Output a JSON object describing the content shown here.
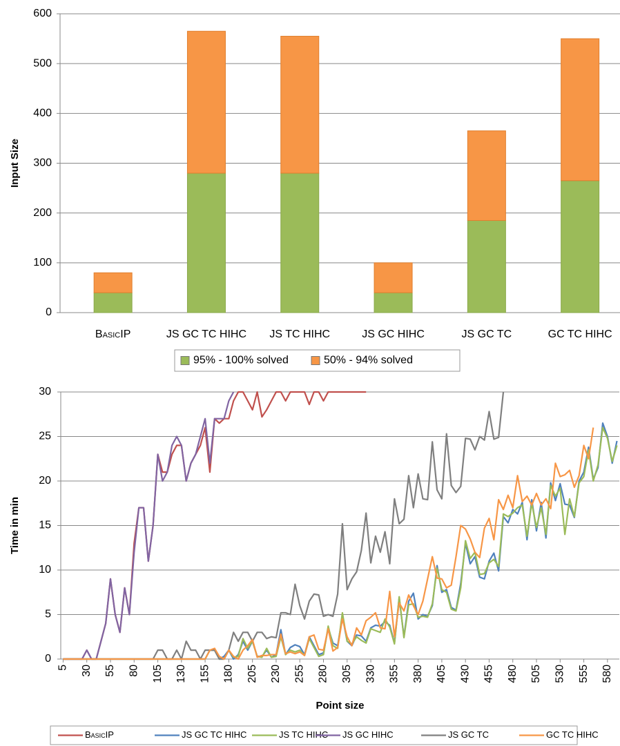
{
  "chart_data": [
    {
      "type": "bar",
      "stacked": true,
      "ylabel": "Input Size",
      "categories": [
        "BasicIP",
        "JS GC TC HIHC",
        "JS TC HIHC",
        "JS GC HIHC",
        "JS GC TC",
        "GC TC HIHC"
      ],
      "series": [
        {
          "name": "95% - 100% solved",
          "color": "#9bbb59",
          "values": [
            40,
            280,
            280,
            40,
            185,
            265
          ]
        },
        {
          "name": "50% - 94% solved",
          "color": "#f79646",
          "values": [
            40,
            285,
            275,
            60,
            180,
            285
          ]
        }
      ],
      "ylim": [
        0,
        600
      ],
      "yticks": [
        0,
        100,
        200,
        300,
        400,
        500,
        600
      ],
      "grid": true,
      "legend": "bottom"
    },
    {
      "type": "line",
      "xlabel": "Point size",
      "ylabel": "Time in min",
      "x": [
        5,
        10,
        15,
        20,
        25,
        30,
        35,
        40,
        45,
        50,
        55,
        60,
        65,
        70,
        75,
        80,
        85,
        90,
        95,
        100,
        105,
        110,
        115,
        120,
        125,
        130,
        135,
        140,
        145,
        150,
        155,
        160,
        165,
        170,
        175,
        180,
        185,
        190,
        195,
        200,
        205,
        210,
        215,
        220,
        225,
        230,
        235,
        240,
        245,
        250,
        255,
        260,
        265,
        270,
        275,
        280,
        285,
        290,
        295,
        300,
        305,
        310,
        315,
        320,
        325,
        330,
        335,
        340,
        345,
        350,
        355,
        360,
        365,
        370,
        375,
        380,
        385,
        390,
        395,
        400,
        405,
        410,
        415,
        420,
        425,
        430,
        435,
        440,
        445,
        450,
        455,
        460,
        465,
        470,
        475,
        480,
        485,
        490,
        495,
        500,
        505,
        510,
        515,
        520,
        525,
        530,
        535,
        540,
        545,
        550,
        555,
        560,
        565,
        570,
        575,
        580,
        585,
        590
      ],
      "series": [
        {
          "name": "BasicIP",
          "color": "#c0504d",
          "values": [
            0,
            0,
            0,
            0,
            0,
            1,
            0,
            0,
            2,
            4,
            9,
            5,
            3,
            8,
            5,
            13,
            17,
            17,
            11,
            15,
            23,
            21,
            21,
            23,
            24,
            24,
            20,
            22,
            23,
            24,
            26,
            21,
            27,
            26.5,
            27,
            27,
            29,
            30,
            30,
            29,
            28,
            30,
            27.2,
            28,
            29,
            30,
            30,
            29,
            30,
            30,
            30,
            30,
            28.6,
            30,
            30,
            29,
            30,
            30,
            30,
            30,
            30,
            30,
            30,
            30,
            30,
            null,
            null,
            null,
            null,
            null,
            null,
            null,
            null,
            null,
            null,
            null,
            null,
            null,
            null,
            null,
            null,
            null,
            null,
            null,
            null,
            null,
            null,
            null,
            null,
            null,
            null,
            null,
            null,
            null,
            null,
            null,
            null,
            null,
            null,
            null,
            null,
            null,
            null,
            null,
            null,
            null,
            null,
            null,
            null,
            null,
            null,
            null,
            null,
            null,
            null,
            null,
            null,
            null
          ]
        },
        {
          "name": "JS GC TC HIHC",
          "color": "#4f81bd",
          "values": [
            0,
            0,
            0,
            0,
            0,
            0,
            0,
            0,
            0,
            0,
            0,
            0,
            0,
            0,
            0,
            0,
            0,
            0,
            0,
            0,
            0,
            0,
            0,
            0,
            0,
            0,
            0,
            0,
            0,
            0,
            0,
            1,
            1,
            0,
            0.3,
            1,
            0,
            0.5,
            2,
            1,
            2,
            0.3,
            0.3,
            1,
            0.2,
            0.5,
            3.3,
            0.5,
            1.3,
            1.6,
            1.4,
            0.5,
            2.5,
            1.5,
            0.5,
            0.7,
            3.5,
            1.8,
            1.5,
            4.8,
            2,
            1.5,
            2.7,
            2.6,
            2,
            3.5,
            3.8,
            3.7,
            4.2,
            3.8,
            1.8,
            6.9,
            2.5,
            6.5,
            7.4,
            4.5,
            5,
            4.8,
            6,
            10.5,
            7.5,
            7.8,
            5.8,
            5.5,
            8.5,
            13,
            10.7,
            11.5,
            9.2,
            9,
            11,
            11.9,
            9.9,
            16,
            15.3,
            16.8,
            16.3,
            17.6,
            13.4,
            17.9,
            14.4,
            17.6,
            13.6,
            19.8,
            17.8,
            19.7,
            17.4,
            17.3,
            15.9,
            20,
            21,
            23.8,
            20.2,
            21.5,
            26.5,
            25,
            22,
            24.5
          ]
        },
        {
          "name": "JS TC HIHC",
          "color": "#9bbb59",
          "values": [
            0,
            0,
            0,
            0,
            0,
            0,
            0,
            0,
            0,
            0,
            0,
            0,
            0,
            0,
            0,
            0,
            0,
            0,
            0,
            0,
            0,
            0,
            0,
            0,
            0,
            0,
            0,
            0,
            0,
            0,
            0,
            1,
            1,
            0,
            0,
            1,
            0.2,
            0.3,
            2.3,
            1.2,
            2,
            0.3,
            0.2,
            1.2,
            0.2,
            0.3,
            2.5,
            0.5,
            1,
            0.8,
            1,
            0.4,
            2.3,
            1.3,
            0.3,
            0.5,
            3.7,
            1.5,
            1.2,
            5.2,
            2,
            1.7,
            2.5,
            2.1,
            1.8,
            3.4,
            3.2,
            3,
            4.5,
            3.6,
            1.7,
            7,
            2.4,
            6.1,
            6.2,
            4.7,
            4.8,
            4.7,
            6.2,
            10.2,
            7.8,
            7.5,
            5.6,
            5.4,
            8,
            13.3,
            11.3,
            12,
            9.5,
            9.6,
            10.8,
            11.2,
            10.4,
            16.3,
            16,
            16.4,
            17,
            17.3,
            13.8,
            17.5,
            14.8,
            17,
            14,
            19.5,
            18.3,
            19.2,
            14,
            18,
            16,
            19.8,
            20.5,
            23.5,
            20,
            21.8,
            26,
            24.8,
            22.2,
            24
          ]
        },
        {
          "name": "JS GC HIHC",
          "color": "#8064a2",
          "values": [
            0,
            0,
            0,
            0,
            0,
            1,
            0,
            0,
            2,
            4,
            9,
            5,
            3,
            8,
            5,
            12,
            17,
            17,
            11,
            15,
            23,
            20,
            21,
            24,
            25,
            24,
            20,
            22,
            23,
            25,
            27,
            22,
            27,
            27,
            27,
            29,
            30,
            null,
            null,
            null,
            null,
            null,
            null,
            null,
            null,
            null,
            null,
            null,
            null,
            null,
            null,
            null,
            null,
            null,
            null,
            null,
            null,
            null,
            null,
            null,
            null,
            null,
            null,
            null,
            null,
            null,
            null,
            null,
            null,
            null,
            null,
            null,
            null,
            null,
            null,
            null,
            null,
            null,
            null,
            null,
            null,
            null,
            null,
            null,
            null,
            null,
            null,
            null,
            null,
            null,
            null,
            null,
            null,
            null,
            null,
            null,
            null,
            null,
            null,
            null,
            null,
            null,
            null,
            null,
            null,
            null,
            null,
            null,
            null,
            null,
            null,
            null,
            null,
            null,
            null,
            null,
            null,
            null
          ]
        },
        {
          "name": "JS GC TC",
          "color": "#7f7f7f",
          "values": [
            0,
            0,
            0,
            0,
            0,
            0,
            0,
            0,
            0,
            0,
            0,
            0,
            0,
            0,
            0,
            0,
            0,
            0,
            0,
            0,
            1,
            1,
            0,
            0,
            1,
            0,
            2,
            1,
            1,
            0,
            1,
            1,
            1,
            0,
            0,
            1,
            3,
            2,
            3,
            3,
            2,
            3,
            3,
            2.3,
            2.5,
            2.4,
            5.2,
            5.2,
            5,
            8.4,
            6,
            4.5,
            6.5,
            7.3,
            7.2,
            4.8,
            5,
            4.8,
            7.3,
            15.2,
            7.8,
            9,
            9.8,
            12.2,
            16.4,
            10.8,
            13.8,
            12,
            14.3,
            10.7,
            18,
            15.2,
            15.7,
            20.6,
            17,
            20.8,
            18,
            17.9,
            24.4,
            19,
            18,
            25.3,
            19.5,
            18.7,
            19.4,
            24.8,
            24.7,
            23.5,
            25,
            24.6,
            27.8,
            24.7,
            24.9,
            30,
            null,
            null,
            null,
            null,
            null,
            null,
            null,
            null,
            null,
            null,
            null,
            null,
            null,
            null,
            null,
            null,
            null,
            null,
            null,
            null,
            null,
            null,
            null,
            null
          ]
        },
        {
          "name": "GC TC HIHC",
          "color": "#f79646",
          "values": [
            0,
            0,
            0,
            0,
            0,
            0,
            0,
            0,
            0,
            0,
            0,
            0,
            0,
            0,
            0,
            0,
            0,
            0,
            0,
            0,
            0,
            0,
            0,
            0,
            0,
            0,
            0,
            0,
            0,
            0,
            0,
            1,
            1.2,
            0.3,
            0,
            1,
            0.3,
            0,
            1,
            1.5,
            2.2,
            0.2,
            0.4,
            0.4,
            0.5,
            0.5,
            2.8,
            0.6,
            0.8,
            0.6,
            0.8,
            0.4,
            2.5,
            2.7,
            1.1,
            1,
            3.4,
            0.9,
            1.3,
            4.5,
            2.5,
            1.5,
            3.5,
            2.7,
            4.3,
            4.7,
            5.2,
            3.5,
            3.4,
            7.6,
            2.5,
            6.3,
            5.4,
            7.2,
            6,
            5,
            6.5,
            9,
            11.5,
            9.1,
            9,
            8,
            8.3,
            11.5,
            15,
            14.6,
            13.5,
            12,
            11.4,
            14.7,
            15.8,
            13.4,
            17.9,
            16.8,
            18.4,
            17,
            20.6,
            17.7,
            18.3,
            17.3,
            18.6,
            17.3,
            18,
            16.9,
            22,
            20.5,
            20.7,
            21.2,
            19.3,
            20.6,
            24,
            22.5,
            26,
            null,
            null,
            null,
            null,
            null
          ]
        }
      ],
      "xlim": [
        2.5,
        592.5
      ],
      "xticks": [
        5,
        30,
        55,
        80,
        105,
        130,
        155,
        180,
        205,
        230,
        255,
        280,
        305,
        330,
        355,
        380,
        405,
        430,
        455,
        480,
        505,
        530,
        555,
        580
      ],
      "ylim": [
        0,
        30
      ],
      "yticks": [
        0,
        5,
        10,
        15,
        20,
        25,
        30
      ],
      "grid": true,
      "legend": "bottom"
    }
  ]
}
